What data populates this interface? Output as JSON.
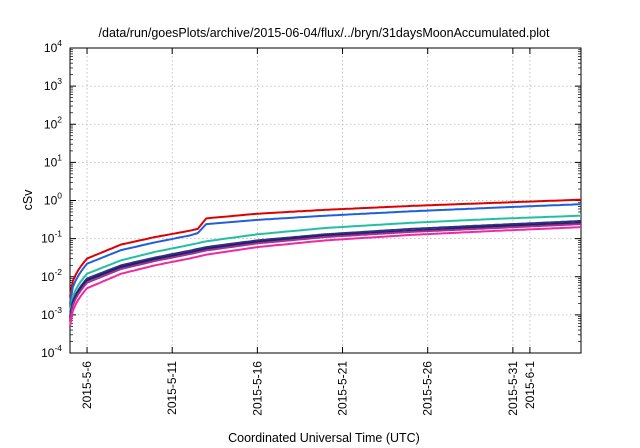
{
  "chart_data": {
    "type": "line",
    "title": "/data/run/goesPlots/archive/2015-06-04/flux/../bryn/31daysMoonAccumulated.plot",
    "xlabel": "Coordinated Universal Time (UTC)",
    "ylabel": "cSv",
    "x_start": "2015-05-05",
    "x_end": "2015-06-04",
    "x_ticks": [
      "2015-5-6",
      "2015-5-11",
      "2015-5-16",
      "2015-5-21",
      "2015-5-26",
      "2015-5-31",
      "2015-6-1"
    ],
    "y_scale": "log",
    "ylim": [
      0.0001,
      10000
    ],
    "y_ticks": [
      {
        "base": "10",
        "exp": "4"
      },
      {
        "base": "10",
        "exp": "3"
      },
      {
        "base": "10",
        "exp": "2"
      },
      {
        "base": "10",
        "exp": "1"
      },
      {
        "base": "10",
        "exp": "0"
      },
      {
        "base": "10",
        "exp": "-1"
      },
      {
        "base": "10",
        "exp": "-2"
      },
      {
        "base": "10",
        "exp": "-3"
      },
      {
        "base": "10",
        "exp": "-4"
      }
    ],
    "grid": true,
    "legend": "none",
    "series": [
      {
        "color": "#dd0000",
        "x": [
          "2015-05-05",
          "2015-05-06",
          "2015-05-08",
          "2015-05-10",
          "2015-05-12",
          "2015-05-12T12:00",
          "2015-05-13",
          "2015-05-16",
          "2015-05-20",
          "2015-05-25",
          "2015-05-30",
          "2015-06-04"
        ],
        "values": [
          0.003,
          0.03,
          0.07,
          0.11,
          0.16,
          0.18,
          0.34,
          0.45,
          0.57,
          0.72,
          0.87,
          1.05
        ]
      },
      {
        "color": "#1f5fdc",
        "x": [
          "2015-05-05",
          "2015-05-06",
          "2015-05-08",
          "2015-05-10",
          "2015-05-12",
          "2015-05-12T12:00",
          "2015-05-13",
          "2015-05-16",
          "2015-05-20",
          "2015-05-25",
          "2015-05-30",
          "2015-06-04"
        ],
        "values": [
          0.002,
          0.022,
          0.05,
          0.08,
          0.12,
          0.14,
          0.24,
          0.31,
          0.4,
          0.52,
          0.65,
          0.8
        ]
      },
      {
        "color": "#20c0a0",
        "x": [
          "2015-05-05",
          "2015-05-06",
          "2015-05-08",
          "2015-05-10",
          "2015-05-12",
          "2015-05-13",
          "2015-05-16",
          "2015-05-20",
          "2015-05-25",
          "2015-05-30",
          "2015-06-04"
        ],
        "values": [
          0.0012,
          0.012,
          0.027,
          0.045,
          0.068,
          0.085,
          0.13,
          0.19,
          0.26,
          0.33,
          0.4
        ]
      },
      {
        "color": "#303090",
        "x": [
          "2015-05-05",
          "2015-05-06",
          "2015-05-08",
          "2015-05-10",
          "2015-05-12",
          "2015-05-13",
          "2015-05-16",
          "2015-05-20",
          "2015-05-25",
          "2015-05-30",
          "2015-06-04"
        ],
        "values": [
          0.0009,
          0.009,
          0.02,
          0.032,
          0.048,
          0.06,
          0.09,
          0.13,
          0.18,
          0.23,
          0.29
        ]
      },
      {
        "color": "#20205a",
        "x": [
          "2015-05-05",
          "2015-05-06",
          "2015-05-08",
          "2015-05-10",
          "2015-05-12",
          "2015-05-13",
          "2015-05-16",
          "2015-05-20",
          "2015-05-25",
          "2015-05-30",
          "2015-06-04"
        ],
        "values": [
          0.0008,
          0.008,
          0.018,
          0.029,
          0.043,
          0.054,
          0.082,
          0.12,
          0.16,
          0.21,
          0.26
        ]
      },
      {
        "color": "#a0309a",
        "x": [
          "2015-05-05",
          "2015-05-06",
          "2015-05-08",
          "2015-05-10",
          "2015-05-12",
          "2015-05-13",
          "2015-05-16",
          "2015-05-20",
          "2015-05-25",
          "2015-05-30",
          "2015-06-04"
        ],
        "values": [
          0.0007,
          0.007,
          0.016,
          0.026,
          0.039,
          0.049,
          0.075,
          0.11,
          0.15,
          0.19,
          0.24
        ]
      },
      {
        "color": "#ee2aa0",
        "x": [
          "2015-05-05",
          "2015-05-06",
          "2015-05-08",
          "2015-05-10",
          "2015-05-12",
          "2015-05-13",
          "2015-05-16",
          "2015-05-20",
          "2015-05-25",
          "2015-05-30",
          "2015-06-04"
        ],
        "values": [
          0.0005,
          0.005,
          0.012,
          0.02,
          0.03,
          0.038,
          0.06,
          0.09,
          0.125,
          0.16,
          0.2
        ]
      }
    ]
  }
}
